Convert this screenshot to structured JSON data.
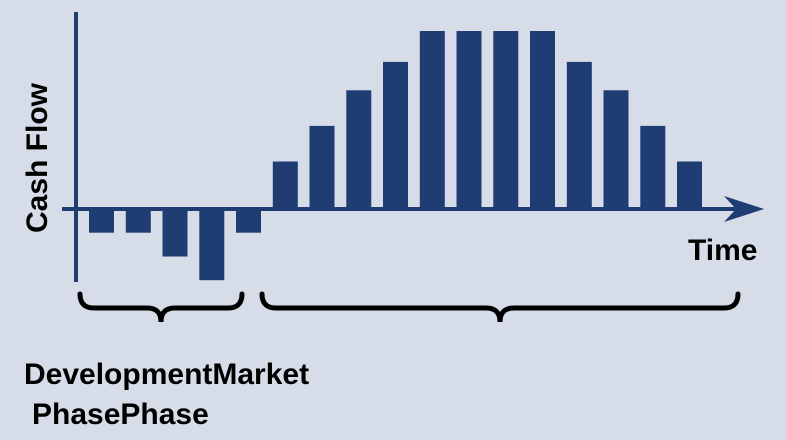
{
  "chart_data": {
    "type": "bar",
    "title": "",
    "xlabel": "Time",
    "ylabel": "Cash Flow",
    "values": [
      -1,
      -1,
      -2,
      -3,
      -1,
      2,
      3.5,
      5,
      6.2,
      7.5,
      7.5,
      7.5,
      7.5,
      6.2,
      5,
      3.5,
      2
    ],
    "ylim": [
      -3,
      7.5
    ],
    "bar_color": "#1f3d73",
    "axis_color": "#1f3d73",
    "grid": false,
    "phases": [
      {
        "name": "Development",
        "bars": [
          0,
          4
        ]
      },
      {
        "name": "Market",
        "bars": [
          5,
          16
        ]
      }
    ]
  },
  "labels": {
    "line1": "DevelopmentMarket",
    "line2": "PhasePhase"
  }
}
